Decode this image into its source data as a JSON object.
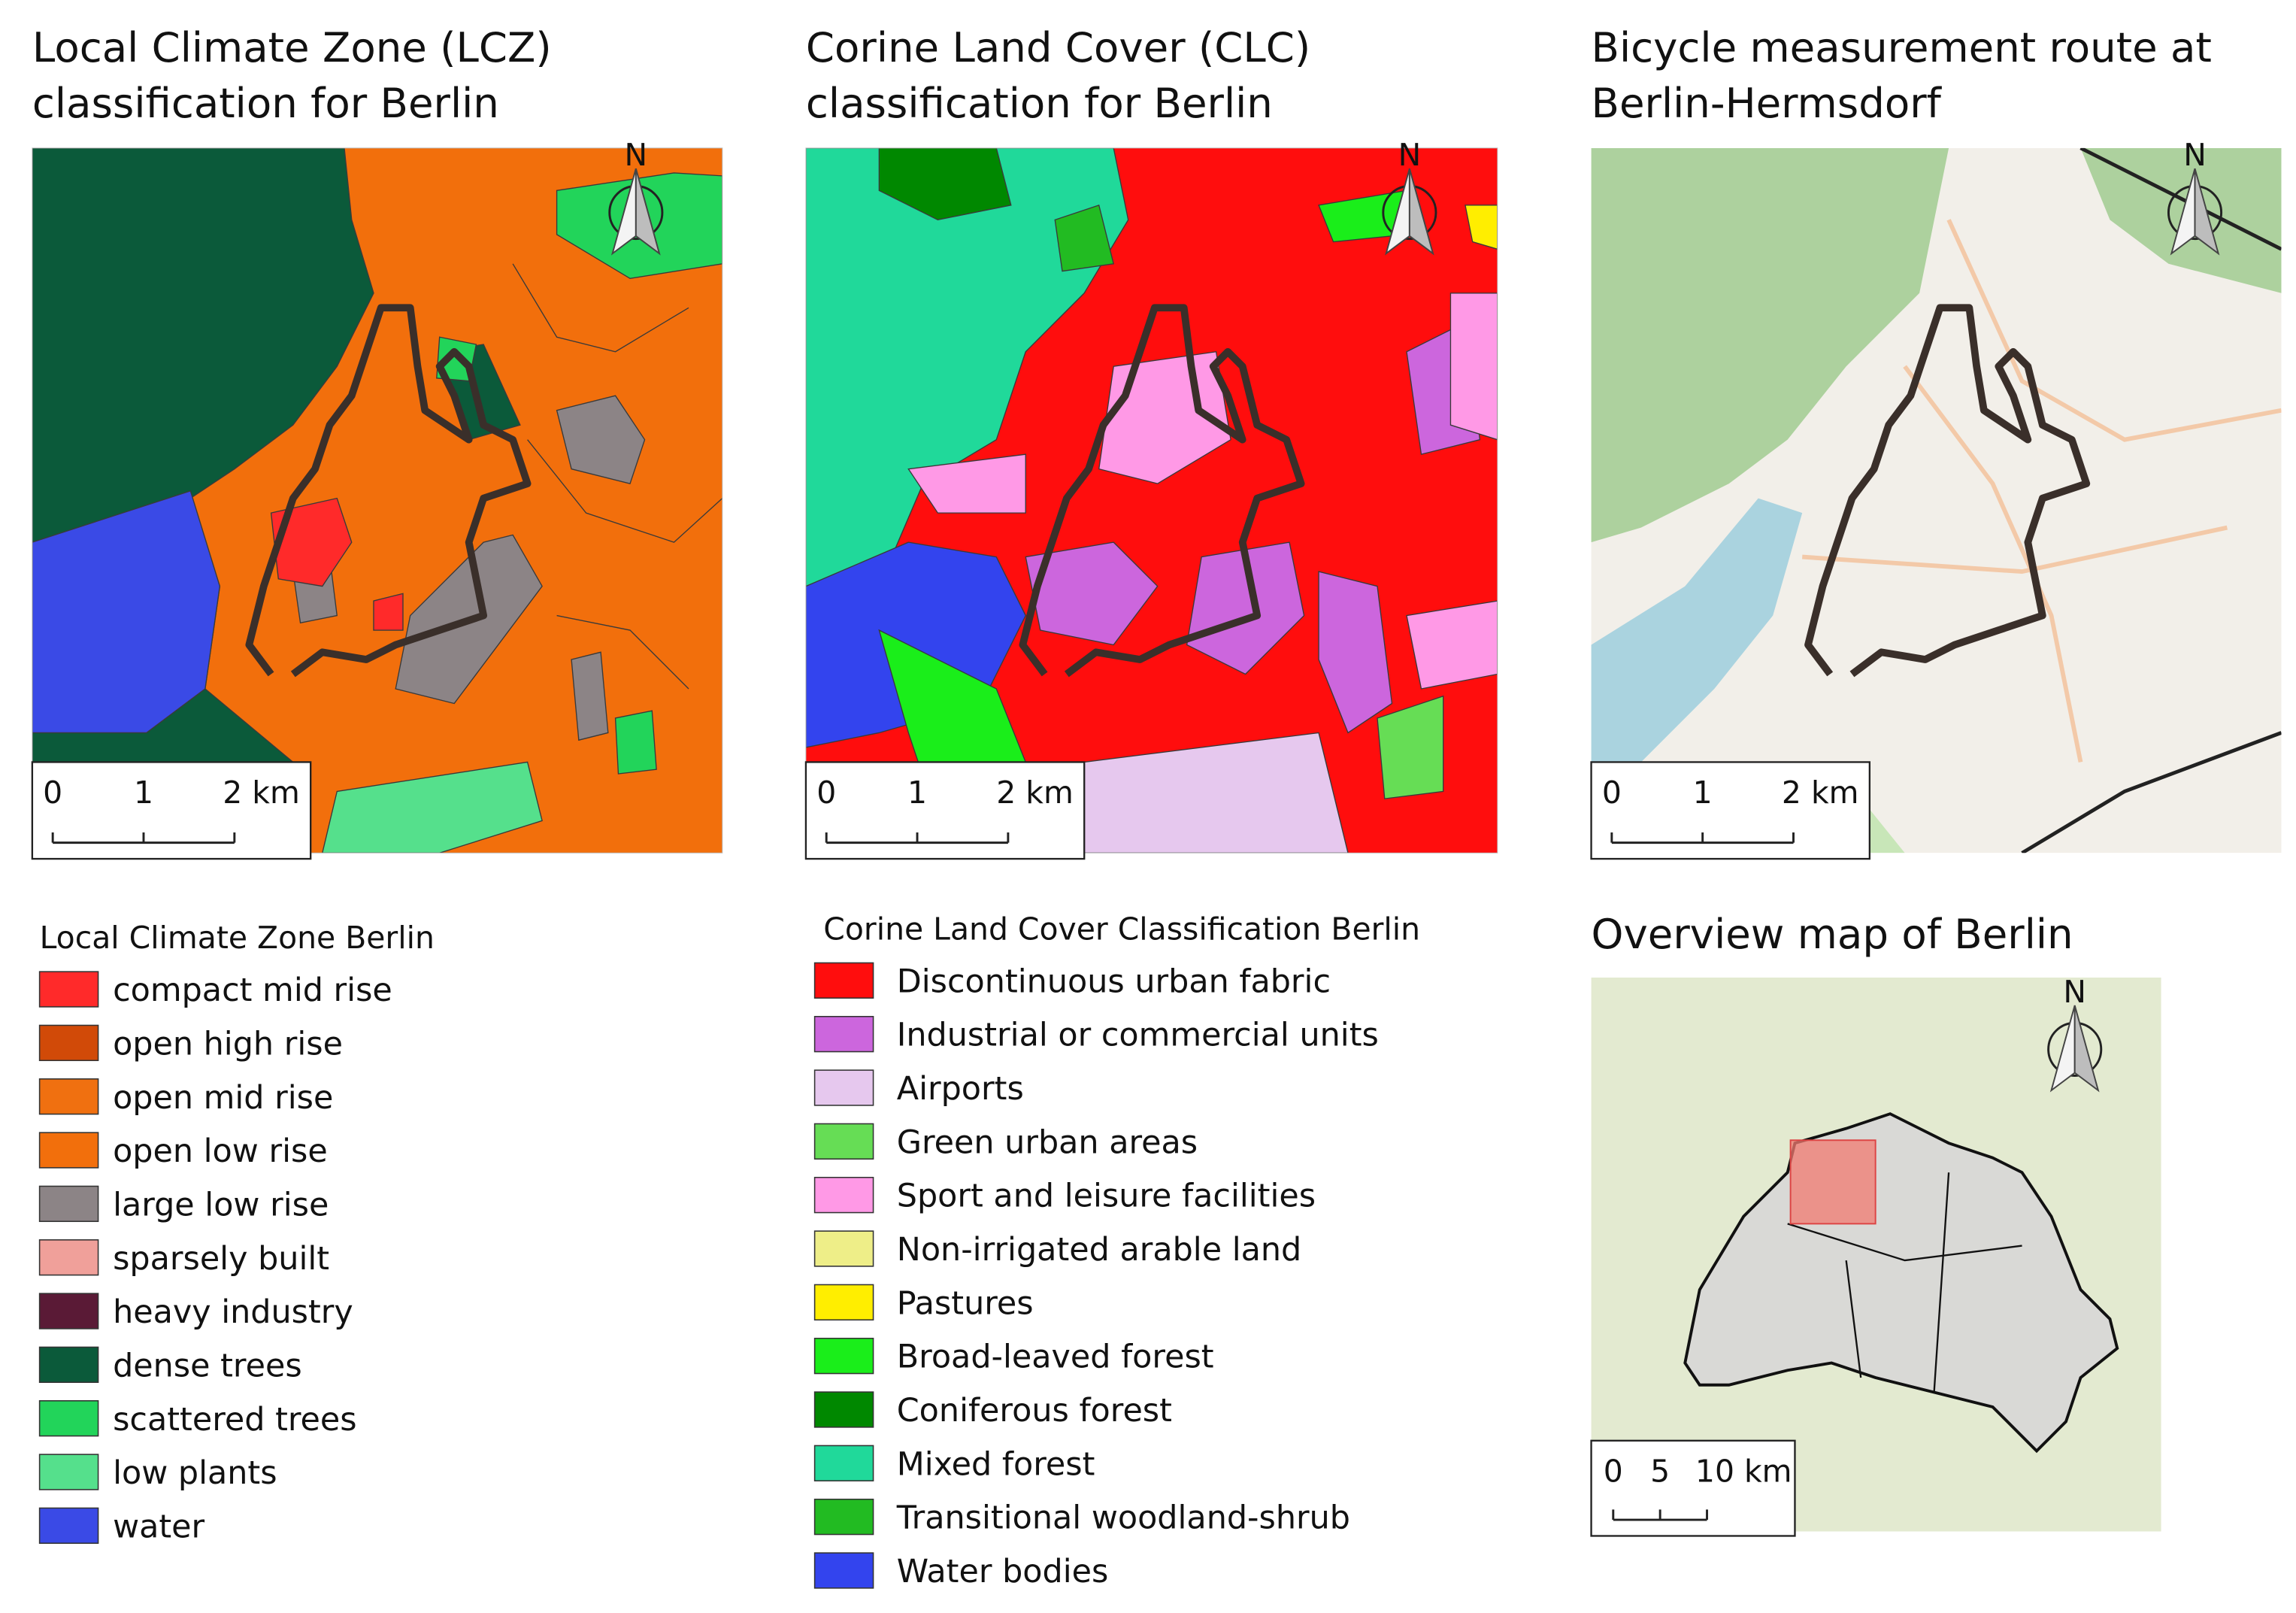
{
  "panels": [
    {
      "title": [
        "Local Climate Zone (LCZ)",
        "classification for Berlin"
      ],
      "north": "N",
      "scale_labels": [
        "0",
        "1",
        "2 km"
      ]
    },
    {
      "title": [
        "Corine Land Cover (CLC)",
        "classification for Berlin"
      ],
      "north": "N",
      "scale_labels": [
        "0",
        "1",
        "2 km"
      ]
    },
    {
      "title": [
        "Bicycle measurement route at",
        "Berlin-Hermsdorf"
      ],
      "north": "N",
      "scale_labels": [
        "0",
        "1",
        "2 km"
      ]
    }
  ],
  "overview": {
    "title": "Overview map of Berlin",
    "north": "N",
    "scale_labels": [
      "0",
      "5",
      "10 km"
    ]
  },
  "legends": [
    {
      "title": "Local Climate Zone Berlin",
      "items": [
        {
          "label": "compact mid rise",
          "color": "#ff2a2a"
        },
        {
          "label": "open high rise",
          "color": "#d14a08"
        },
        {
          "label": "open mid rise",
          "color": "#f07010"
        },
        {
          "label": "open low rise",
          "color": "#f26f0c"
        },
        {
          "label": "large low rise",
          "color": "#8c8486"
        },
        {
          "label": "sparsely built",
          "color": "#f0a09a"
        },
        {
          "label": "heavy industry",
          "color": "#5a1a36"
        },
        {
          "label": "dense trees",
          "color": "#0b5a3a"
        },
        {
          "label": "scattered trees",
          "color": "#22d45a"
        },
        {
          "label": "low plants",
          "color": "#55e08c"
        },
        {
          "label": "water",
          "color": "#3a4ae6"
        }
      ]
    },
    {
      "title": "Corine Land Cover Classification Berlin",
      "items": [
        {
          "label": "Discontinuous urban fabric",
          "color": "#ff0d0d"
        },
        {
          "label": "Industrial or commercial units",
          "color": "#cc66dd"
        },
        {
          "label": "Airports",
          "color": "#e6c8ee"
        },
        {
          "label": "Green urban areas",
          "color": "#66dd55"
        },
        {
          "label": "Sport and leisure facilities",
          "color": "#ff99e6"
        },
        {
          "label": "Non-irrigated arable land",
          "color": "#eeee88"
        },
        {
          "label": "Pastures",
          "color": "#ffee00"
        },
        {
          "label": "Broad-leaved forest",
          "color": "#1aee1a"
        },
        {
          "label": "Coniferous forest",
          "color": "#008800"
        },
        {
          "label": "Mixed forest",
          "color": "#20d99a"
        },
        {
          "label": "Transitional woodland-shrub",
          "color": "#22bb22"
        },
        {
          "label": "Water bodies",
          "color": "#3344ee"
        }
      ]
    }
  ]
}
